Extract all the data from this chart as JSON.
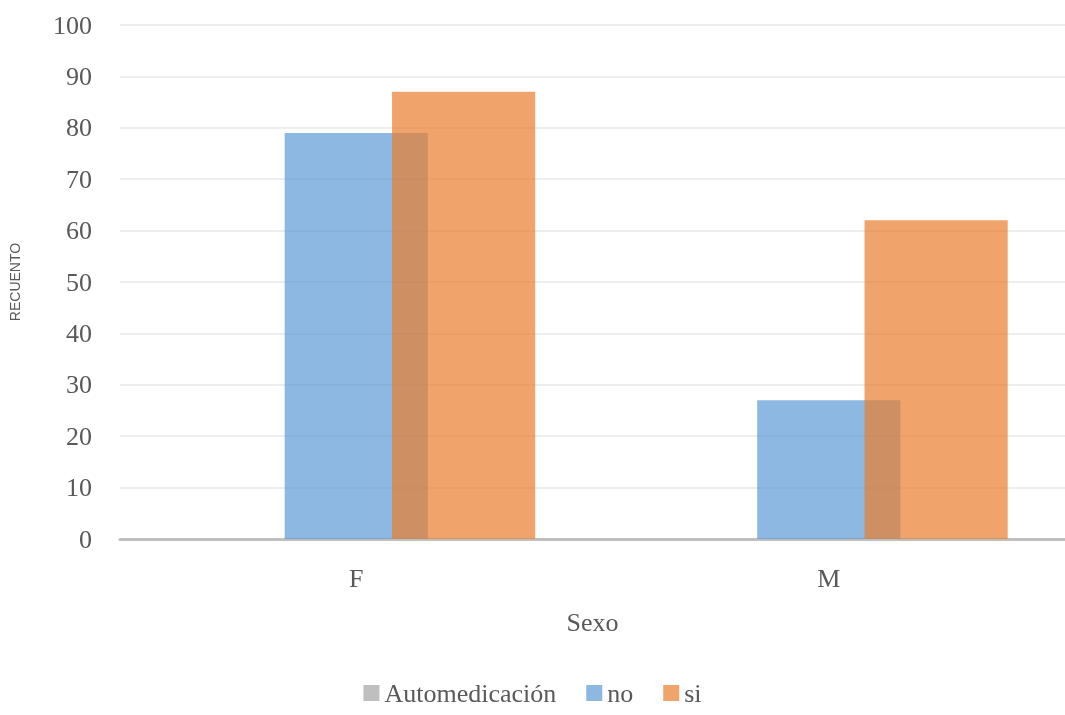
{
  "chart_data": {
    "type": "bar",
    "categories": [
      "F",
      "M"
    ],
    "xlabel": "Sexo",
    "ylabel": "RECUENTO",
    "ylim": [
      0,
      100
    ],
    "yticks": [
      0,
      10,
      20,
      30,
      40,
      50,
      60,
      70,
      80,
      90,
      100
    ],
    "grid": "y",
    "legend": "bottom",
    "series": [
      {
        "name": "Automedicación",
        "color": "#bfbfbf",
        "values": [
          null,
          null
        ]
      },
      {
        "name": "no",
        "color": "#8db8e1",
        "values": [
          79,
          27
        ]
      },
      {
        "name": "si",
        "color": "#f0a46d",
        "values": [
          87,
          62
        ]
      }
    ]
  }
}
